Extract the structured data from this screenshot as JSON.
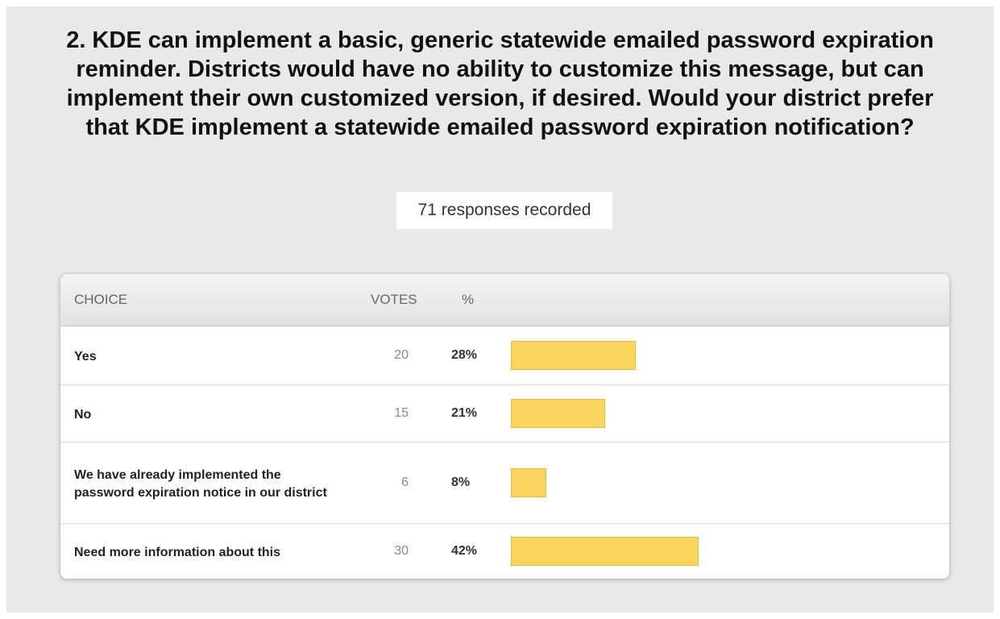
{
  "question": "2. KDE can implement a basic, generic statewide emailed password expiration reminder. Districts would have no ability to customize this message, but can implement their own customized version, if desired. Would your district prefer that KDE implement a statewide emailed password expiration notification?",
  "responses": "71 responses recorded",
  "table": {
    "headers": [
      "CHOICE",
      "VOTES",
      "%"
    ],
    "rows": [
      {
        "choice": "Yes",
        "votes": 20,
        "percent": 28,
        "percent_label": "28%"
      },
      {
        "choice": "No",
        "votes": 15,
        "percent": 21,
        "percent_label": "21%"
      },
      {
        "choice": "We have already implemented the password expiration notice in our district",
        "votes": 6,
        "percent": 8,
        "percent_label": "8%"
      },
      {
        "choice": "Need more information about this",
        "votes": 30,
        "percent": 42,
        "percent_label": "42%"
      }
    ],
    "bar_color": "#f9d55f"
  }
}
